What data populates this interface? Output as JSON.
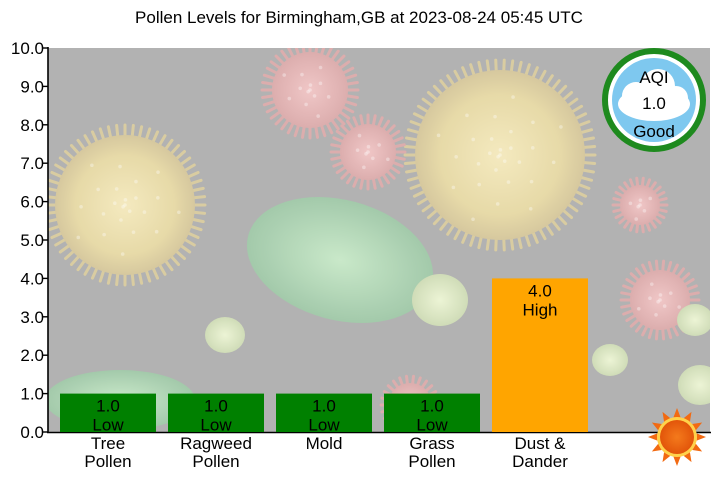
{
  "chart_data": {
    "type": "bar",
    "title": "Pollen Levels for Birmingham,GB at 2023-08-24 05:45 UTC",
    "xlabel": "",
    "ylabel": "",
    "ylim": [
      0,
      10
    ],
    "yticks": [
      "0.0",
      "1.0",
      "2.0",
      "3.0",
      "4.0",
      "5.0",
      "6.0",
      "7.0",
      "8.0",
      "9.0",
      "10.0"
    ],
    "grid": false,
    "categories": [
      {
        "line1": "Tree",
        "line2": "Pollen"
      },
      {
        "line1": "Ragweed",
        "line2": "Pollen"
      },
      {
        "line1": "Mold",
        "line2": ""
      },
      {
        "line1": "Grass",
        "line2": "Pollen"
      },
      {
        "line1": "Dust &",
        "line2": "Dander"
      }
    ],
    "bars": [
      {
        "value": 1.0,
        "value_label": "1.0",
        "level": "Low",
        "color": "#008000"
      },
      {
        "value": 1.0,
        "value_label": "1.0",
        "level": "Low",
        "color": "#008000"
      },
      {
        "value": 1.0,
        "value_label": "1.0",
        "level": "Low",
        "color": "#008000"
      },
      {
        "value": 1.0,
        "value_label": "1.0",
        "level": "Low",
        "color": "#008000"
      },
      {
        "value": 4.0,
        "value_label": "4.0",
        "level": "High",
        "color": "#ffa500"
      }
    ]
  },
  "aqi": {
    "label": "AQI",
    "value": "1.0",
    "status": "Good",
    "ring_color": "#1e8a1e",
    "sky_color": "#7ec8ef"
  },
  "sun_icon": "sun-icon",
  "background": "pollen-grains-illustration"
}
